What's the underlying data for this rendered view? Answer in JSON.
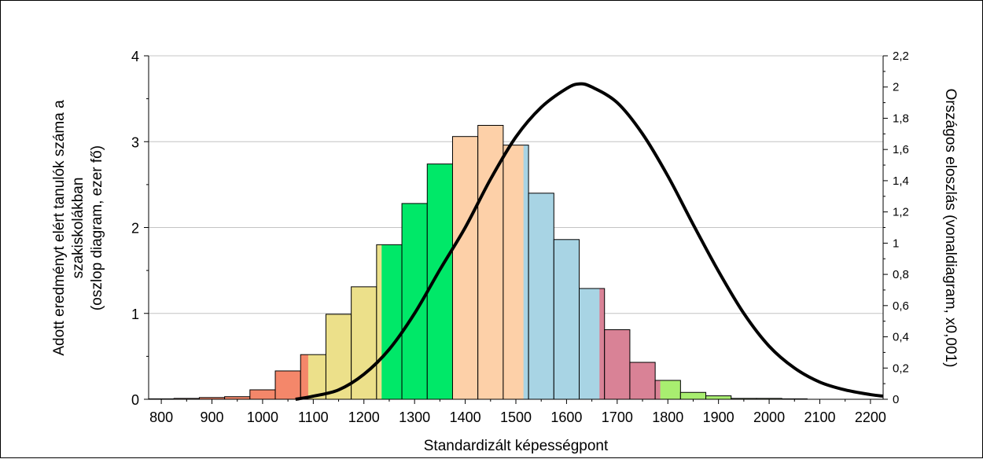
{
  "chart_data": {
    "type": "bar",
    "xlabel": "Standardizált képességpont",
    "ylabel_lines": [
      "Adott eredményt elért tanulók száma a",
      "szakiskolákban",
      "(oszlop diagram, ezer fő)"
    ],
    "y2label": "Országos eloszlás (vonaldiagram, x0,001)",
    "x_ticks": [
      "800",
      "900",
      "1000",
      "1100",
      "1200",
      "1300",
      "1400",
      "1500",
      "1600",
      "1700",
      "1800",
      "1900",
      "2000",
      "2100",
      "2200"
    ],
    "y_ticks": [
      "0",
      "1",
      "2",
      "3",
      "4"
    ],
    "y2_ticks": [
      "0",
      "0,2",
      "0,4",
      "0,6",
      "0,8",
      "1",
      "1,2",
      "1,4",
      "1,6",
      "1,8",
      "2",
      "2,2"
    ],
    "xlim": [
      775,
      2225
    ],
    "ylim": [
      0,
      4
    ],
    "y2lim": [
      0,
      2.2
    ],
    "grid": true,
    "bar_width": 50,
    "bars": [
      {
        "x": 800,
        "value": 0.005,
        "color": "#f4a582"
      },
      {
        "x": 850,
        "value": 0.01,
        "color": "#f4a582"
      },
      {
        "x": 900,
        "value": 0.02,
        "color": "#f4876a"
      },
      {
        "x": 950,
        "value": 0.03,
        "color": "#f4876a"
      },
      {
        "x": 1000,
        "value": 0.11,
        "color": "#f4876a"
      },
      {
        "x": 1050,
        "value": 0.33,
        "color": "#f4876a"
      },
      {
        "x": 1100,
        "value": 0.52,
        "color": "#ece08a",
        "band": {
          "from": 1075,
          "to": 1090,
          "color": "#f4876a"
        }
      },
      {
        "x": 1150,
        "value": 0.99,
        "color": "#ece08a"
      },
      {
        "x": 1200,
        "value": 1.31,
        "color": "#ece08a"
      },
      {
        "x": 1250,
        "value": 1.8,
        "color": "#00e868",
        "band": {
          "from": 1225,
          "to": 1235,
          "color": "#ece08a"
        }
      },
      {
        "x": 1300,
        "value": 2.28,
        "color": "#00e868"
      },
      {
        "x": 1350,
        "value": 2.74,
        "color": "#00e868"
      },
      {
        "x": 1400,
        "value": 3.06,
        "color": "#fdd0a8"
      },
      {
        "x": 1450,
        "value": 3.19,
        "color": "#fdd0a8"
      },
      {
        "x": 1500,
        "value": 2.96,
        "color": "#fdd0a8",
        "band": {
          "from": 1515,
          "to": 1525,
          "color": "#a8d4e4"
        }
      },
      {
        "x": 1550,
        "value": 2.4,
        "color": "#a8d4e4"
      },
      {
        "x": 1600,
        "value": 1.86,
        "color": "#a8d4e4"
      },
      {
        "x": 1650,
        "value": 1.29,
        "color": "#a8d4e4",
        "band": {
          "from": 1665,
          "to": 1675,
          "color": "#d98296"
        }
      },
      {
        "x": 1700,
        "value": 0.81,
        "color": "#d98296"
      },
      {
        "x": 1750,
        "value": 0.43,
        "color": "#d98296"
      },
      {
        "x": 1800,
        "value": 0.22,
        "color": "#a8ee70",
        "band": {
          "from": 1775,
          "to": 1785,
          "color": "#d98296"
        }
      },
      {
        "x": 1850,
        "value": 0.08,
        "color": "#a8ee70"
      },
      {
        "x": 1900,
        "value": 0.04,
        "color": "#a8ee70"
      },
      {
        "x": 1950,
        "value": 0.01,
        "color": "#a8ee70"
      },
      {
        "x": 2000,
        "value": 0.01,
        "color": "#a8ee70"
      },
      {
        "x": 2050,
        "value": 0.005,
        "color": "#a8ee70"
      }
    ],
    "line": {
      "axis": "y2",
      "color": "#000000",
      "points": [
        [
          1065,
          0.0
        ],
        [
          1100,
          0.02
        ],
        [
          1150,
          0.06
        ],
        [
          1200,
          0.16
        ],
        [
          1250,
          0.32
        ],
        [
          1300,
          0.55
        ],
        [
          1350,
          0.83
        ],
        [
          1400,
          1.1
        ],
        [
          1450,
          1.41
        ],
        [
          1500,
          1.68
        ],
        [
          1550,
          1.87
        ],
        [
          1600,
          1.99
        ],
        [
          1625,
          2.02
        ],
        [
          1650,
          2.0
        ],
        [
          1700,
          1.9
        ],
        [
          1750,
          1.7
        ],
        [
          1800,
          1.43
        ],
        [
          1850,
          1.12
        ],
        [
          1900,
          0.82
        ],
        [
          1950,
          0.55
        ],
        [
          2000,
          0.34
        ],
        [
          2050,
          0.2
        ],
        [
          2100,
          0.11
        ],
        [
          2150,
          0.06
        ],
        [
          2200,
          0.03
        ],
        [
          2225,
          0.02
        ]
      ]
    }
  }
}
